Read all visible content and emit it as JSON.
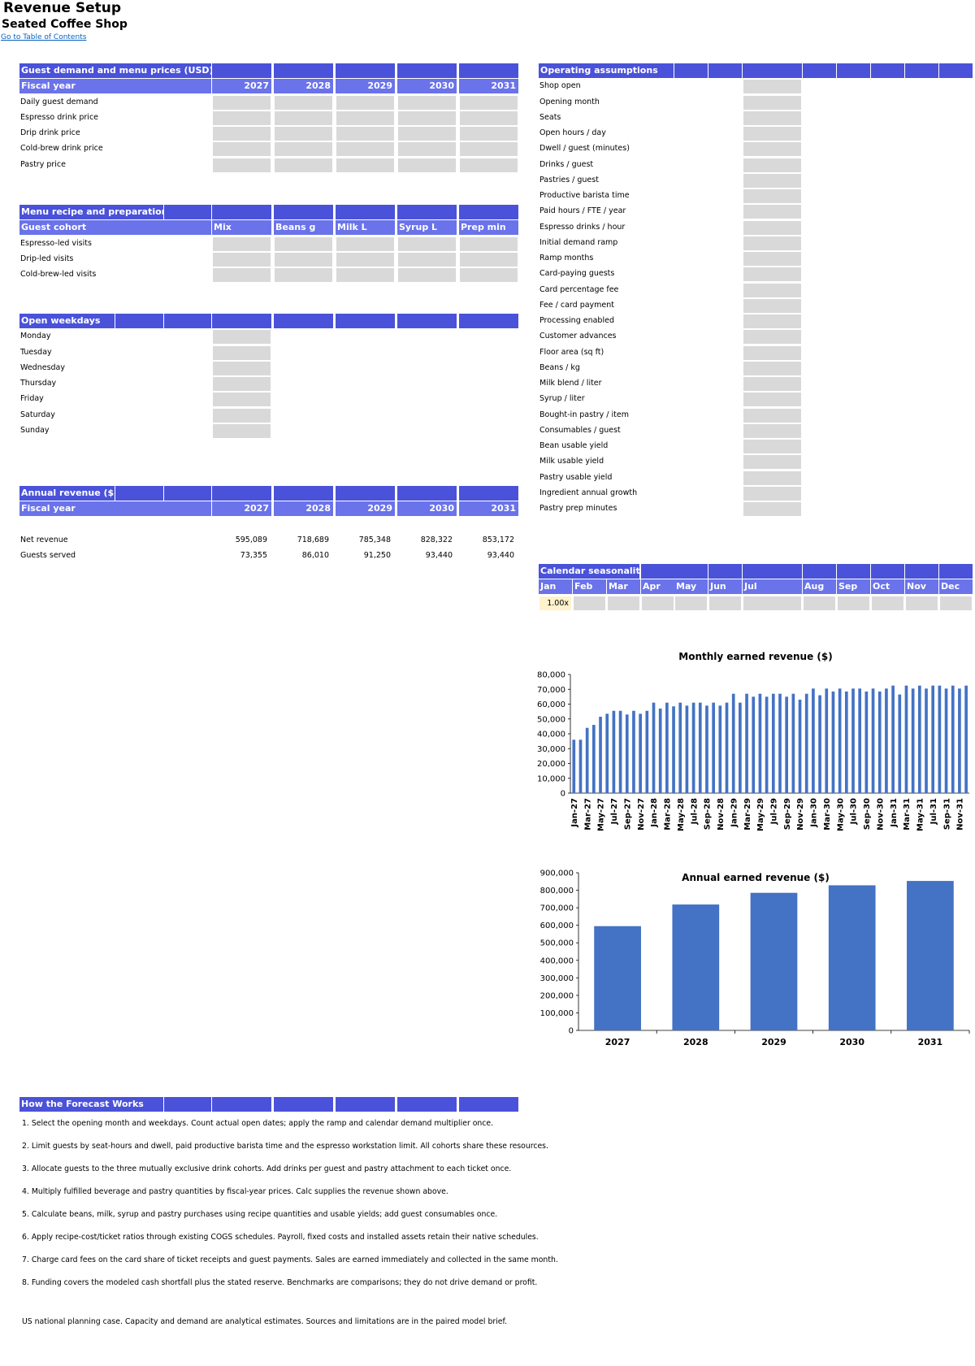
{
  "page": {
    "title": "Revenue Setup",
    "subtitle": "Seated Coffee Shop",
    "toc_link": "Go to Table of Contents"
  },
  "demand": {
    "header": "Guest demand and menu prices (USD)",
    "year_label": "Fiscal year",
    "years": [
      "2027",
      "2028",
      "2029",
      "2030",
      "2031"
    ],
    "rows": [
      "Daily guest demand",
      "Espresso drink price",
      "Drip drink price",
      "Cold-brew drink price",
      "Pastry price"
    ]
  },
  "recipe": {
    "header": "Menu recipe and preparation",
    "cohort_label": "Guest cohort",
    "columns": [
      "Mix",
      "Beans g",
      "Milk L",
      "Syrup L",
      "Prep min"
    ],
    "rows": [
      "Espresso-led visits",
      "Drip-led visits",
      "Cold-brew-led visits"
    ]
  },
  "weekdays": {
    "header": "Open weekdays",
    "days": [
      "Monday",
      "Tuesday",
      "Wednesday",
      "Thursday",
      "Friday",
      "Saturday",
      "Sunday"
    ]
  },
  "annual": {
    "header": "Annual revenue ($)",
    "year_label": "Fiscal year",
    "years": [
      "2027",
      "2028",
      "2029",
      "2030",
      "2031"
    ],
    "rows": [
      {
        "label": "Net revenue",
        "values": [
          "595,089",
          "718,689",
          "785,348",
          "828,322",
          "853,172"
        ]
      },
      {
        "label": "Guests served",
        "values": [
          "73,355",
          "86,010",
          "91,250",
          "93,440",
          "93,440"
        ]
      }
    ]
  },
  "operating": {
    "header": "Operating assumptions",
    "rows": [
      "Shop open",
      "Opening month",
      "Seats",
      "Open hours / day",
      "Dwell / guest (minutes)",
      "Drinks / guest",
      "Pastries / guest",
      "Productive barista time",
      "Paid hours / FTE / year",
      "Espresso drinks / hour",
      "Initial demand ramp",
      "Ramp months",
      "Card-paying guests",
      "Card percentage fee",
      "Fee / card payment",
      "Processing enabled",
      "Customer advances",
      "Floor area (sq ft)",
      "Beans / kg",
      "Milk blend / liter",
      "Syrup / liter",
      "Bought-in pastry / item",
      "Consumables / guest",
      "Bean usable yield",
      "Milk usable yield",
      "Pastry usable yield",
      "Ingredient annual growth",
      "Pastry prep minutes"
    ]
  },
  "seasonality": {
    "header": "Calendar seasonality",
    "months": [
      "Jan",
      "Feb",
      "Mar",
      "Apr",
      "May",
      "Jun",
      "Jul",
      "Aug",
      "Sep",
      "Oct",
      "Nov",
      "Dec"
    ],
    "jan_value": "1.00x",
    "jan_color": "#fff2cc"
  },
  "notes": {
    "header": "How the Forecast Works",
    "items": [
      "1. Select the opening month and weekdays. Count actual open dates; apply the ramp and calendar demand multiplier once.",
      "2. Limit guests by seat-hours and dwell, paid productive barista time and the espresso workstation limit. All cohorts share these resources.",
      "3. Allocate guests to the three mutually exclusive drink cohorts. Add drinks per guest and pastry attachment to each ticket once.",
      "4. Multiply fulfilled beverage and pastry quantities by fiscal-year prices. Calc supplies the revenue shown above.",
      "5. Calculate beans, milk, syrup and pastry purchases using recipe quantities and usable yields; add guest consumables once.",
      "6. Apply recipe-cost/ticket ratios through existing COGS schedules. Payroll, fixed costs and installed assets retain their native schedules.",
      "7. Charge card fees on the card share of ticket receipts and guest payments. Sales are earned immediately and collected in the same month.",
      "8. Funding covers the modeled cash shortfall plus the stated reserve. Benchmarks are comparisons; they do not drive demand or profit."
    ],
    "footer": "US national planning case. Capacity and demand are analytical estimates. Sources and limitations are in the paired model brief."
  },
  "colors": {
    "header_blue": "#4a52d9",
    "subheader_blue": "#6a73ea",
    "input_gray": "#d9d9d9",
    "bar_blue": "#4472c4"
  },
  "chart_data": [
    {
      "type": "bar",
      "title": "Monthly earned revenue ($)",
      "ylim": [
        0,
        80000
      ],
      "yticks": [
        "0",
        "10,000",
        "20,000",
        "30,000",
        "40,000",
        "50,000",
        "60,000",
        "70,000",
        "80,000"
      ],
      "xtick_labels": [
        "Jan-27",
        "Mar-27",
        "May-27",
        "Jul-27",
        "Sep-27",
        "Nov-27",
        "Jan-28",
        "Mar-28",
        "May-28",
        "Jul-28",
        "Sep-28",
        "Nov-28",
        "Jan-29",
        "Mar-29",
        "May-29",
        "Jul-29",
        "Sep-29",
        "Nov-29",
        "Jan-30",
        "Mar-30",
        "May-30",
        "Jul-30",
        "Sep-30",
        "Nov-30",
        "Jan-31",
        "Mar-31",
        "May-31",
        "Jul-31",
        "Sep-31",
        "Nov-31"
      ],
      "values": [
        36000,
        36000,
        44000,
        46000,
        51500,
        53500,
        55500,
        55500,
        53000,
        55500,
        53500,
        55500,
        61000,
        57000,
        61000,
        58500,
        61000,
        59000,
        61000,
        61000,
        59000,
        61000,
        59000,
        61000,
        67000,
        61000,
        67000,
        65000,
        67000,
        65000,
        67000,
        67000,
        65000,
        67000,
        63000,
        67000,
        70500,
        66000,
        70500,
        68500,
        70500,
        68500,
        70500,
        70500,
        68500,
        70500,
        68500,
        70500,
        72500,
        66500,
        72500,
        70500,
        72500,
        70500,
        72500,
        72500,
        70500,
        72500,
        70500,
        72500
      ],
      "grid": false,
      "legend": "none"
    },
    {
      "type": "bar",
      "title": "Annual earned revenue ($)",
      "categories": [
        "2027",
        "2028",
        "2029",
        "2030",
        "2031"
      ],
      "values": [
        595089,
        718689,
        785348,
        828322,
        853172
      ],
      "ylim": [
        0,
        900000
      ],
      "yticks": [
        "0",
        "100,000",
        "200,000",
        "300,000",
        "400,000",
        "500,000",
        "600,000",
        "700,000",
        "800,000",
        "900,000"
      ],
      "grid": false,
      "legend": "none"
    }
  ]
}
